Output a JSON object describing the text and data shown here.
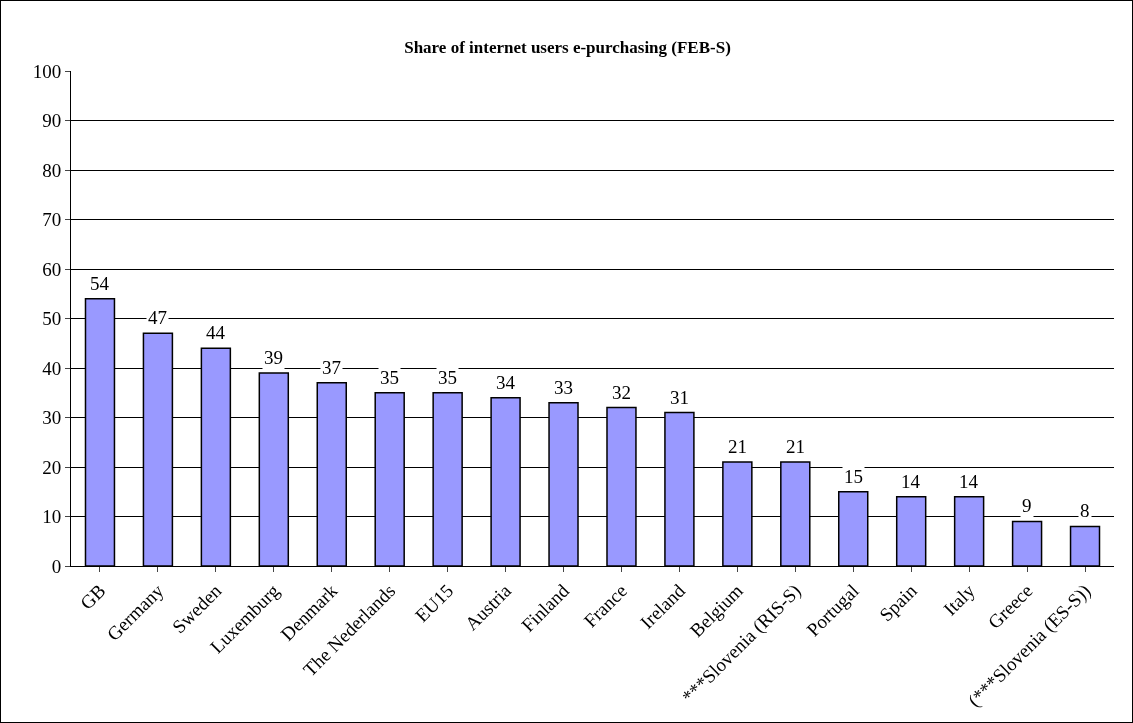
{
  "chart_data": {
    "type": "bar",
    "title": "Share of internet users e-purchasing (FEB-S)",
    "categories": [
      "GB",
      "Germany",
      "Sweden",
      "Luxemburg",
      "Denmark",
      "The Nederlands",
      "EU15",
      "Austria",
      "Finland",
      "France",
      "Ireland",
      "Belgium",
      "***Slovenia (RIS-S)",
      "Portugal",
      "Spain",
      "Italy",
      "Greece",
      "(***Slovenia (ES-S))"
    ],
    "values": [
      54,
      47,
      44,
      39,
      37,
      35,
      35,
      34,
      33,
      32,
      31,
      21,
      21,
      15,
      14,
      14,
      9,
      8
    ],
    "color": "#9999ff",
    "ylim": [
      0,
      100
    ],
    "yticks": [
      0,
      10,
      20,
      30,
      40,
      50,
      60,
      70,
      80,
      90,
      100
    ],
    "grid": "y",
    "data_labels": true
  }
}
